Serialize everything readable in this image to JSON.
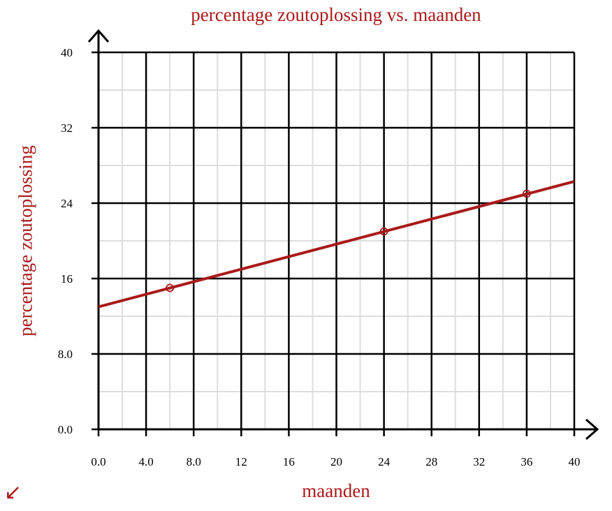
{
  "chart_data": {
    "type": "line",
    "title": "percentage zoutoplossing vs. maanden",
    "xlabel": "maanden",
    "ylabel": "percentage zoutoplossing",
    "xlim": [
      0,
      40
    ],
    "ylim": [
      0,
      40
    ],
    "x_ticks": [
      "0.0",
      "4.0",
      "8.0",
      "12",
      "16",
      "20",
      "24",
      "28",
      "32",
      "36",
      "40"
    ],
    "y_ticks": [
      "0.0",
      "8.0",
      "16",
      "24",
      "32",
      "40"
    ],
    "x_tick_values": [
      0,
      4,
      8,
      12,
      16,
      20,
      24,
      28,
      32,
      36,
      40
    ],
    "y_tick_values": [
      0,
      8,
      16,
      24,
      32,
      40
    ],
    "x_minor_step": 2,
    "y_minor_step": 4,
    "grid": true,
    "series": [
      {
        "line": {
          "x": [
            0,
            40
          ],
          "y": [
            13,
            26.3
          ]
        },
        "points": [
          {
            "x": 6,
            "y": 15
          },
          {
            "x": 24,
            "y": 21
          },
          {
            "x": 36,
            "y": 25
          }
        ]
      }
    ],
    "colors": {
      "accent": "#aa1a1a",
      "grid_major": "#000000",
      "grid_minor": "#dddddd"
    }
  },
  "corner_icon": {
    "name": "arrow-down-left-icon",
    "glyph": "↙"
  }
}
